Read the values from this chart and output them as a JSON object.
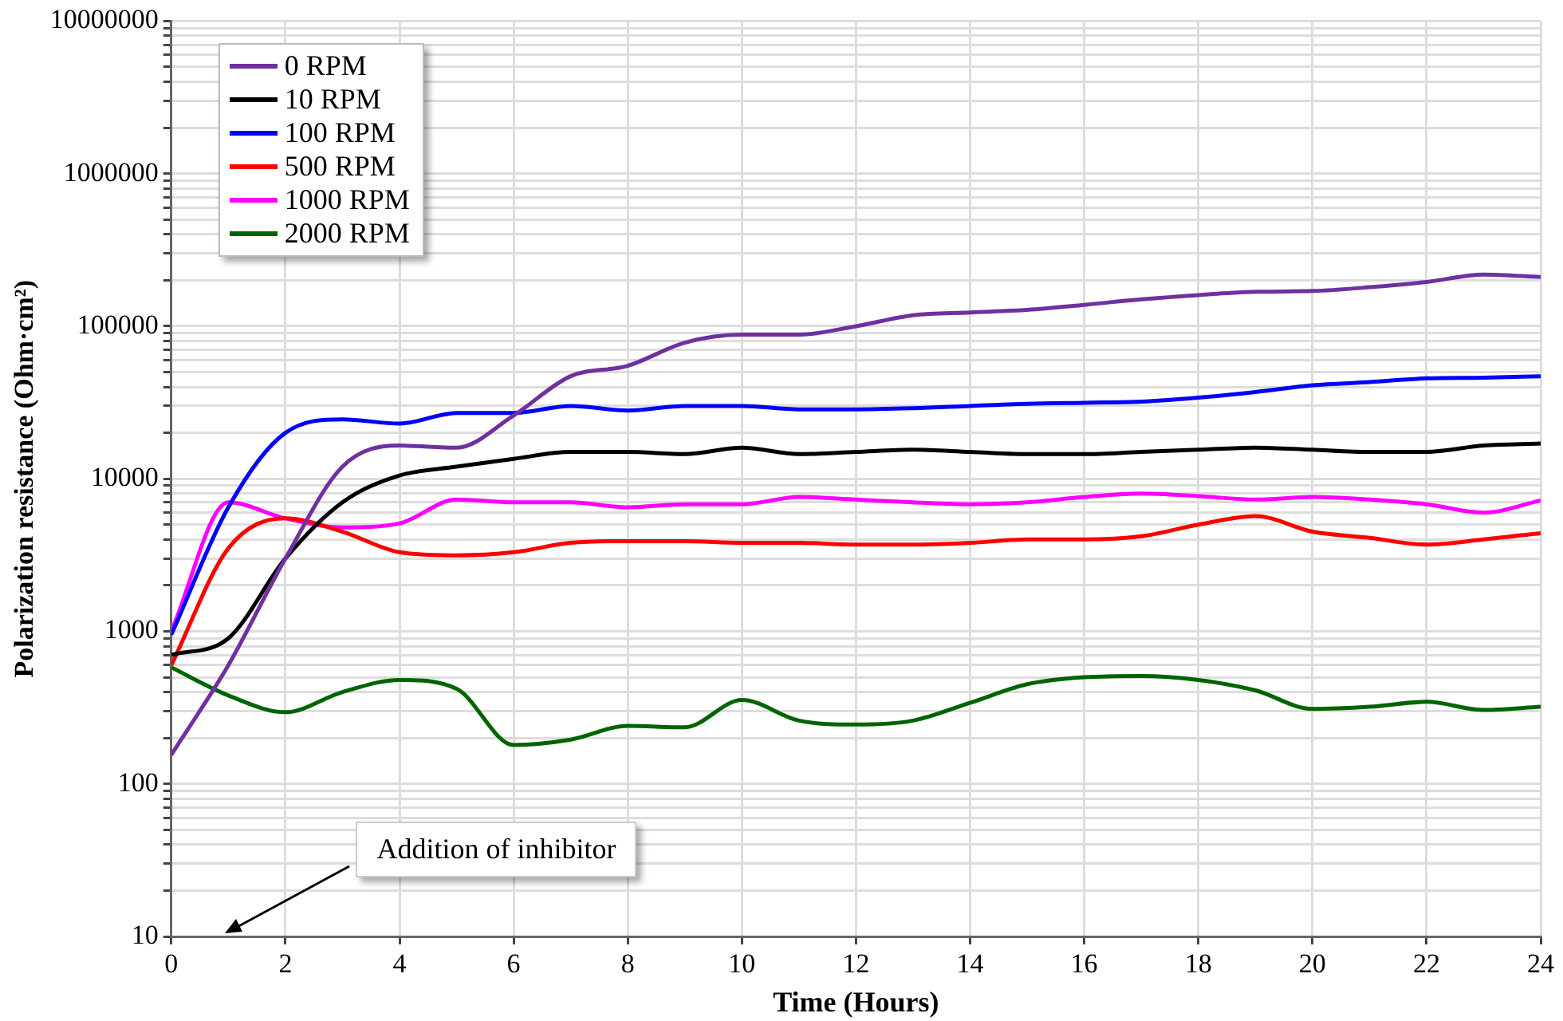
{
  "chart_data": {
    "type": "line",
    "xlabel": "Time (Hours)",
    "ylabel": "Polarization resistance (Ohm·cm²)",
    "x": [
      0,
      1,
      2,
      3,
      4,
      5,
      6,
      7,
      8,
      9,
      10,
      11,
      12,
      13,
      14,
      15,
      16,
      17,
      18,
      19,
      20,
      21,
      22,
      23,
      24
    ],
    "series": [
      {
        "name": "0 RPM",
        "color": "#7030a0",
        "values": [
          155,
          600,
          3000,
          12000,
          16500,
          16000,
          26000,
          47000,
          55000,
          78000,
          88000,
          88000,
          100000,
          118000,
          123000,
          128000,
          138000,
          150000,
          160000,
          168000,
          170000,
          180000,
          195000,
          218000,
          210000
        ]
      },
      {
        "name": "10 RPM",
        "color": "#000000",
        "values": [
          700,
          900,
          3000,
          7000,
          10500,
          12000,
          13500,
          15000,
          15000,
          14500,
          16000,
          14500,
          15000,
          15500,
          15000,
          14500,
          14500,
          15000,
          15500,
          16000,
          15500,
          15000,
          15000,
          16500,
          17000
        ]
      },
      {
        "name": "100 RPM",
        "color": "#0000ff",
        "values": [
          950,
          6500,
          20000,
          24500,
          23000,
          27000,
          27000,
          30000,
          28000,
          30000,
          30000,
          28500,
          28500,
          29000,
          30000,
          31000,
          31500,
          32000,
          34000,
          37000,
          41000,
          43000,
          45500,
          46000,
          47000
        ]
      },
      {
        "name": "500 RPM",
        "color": "#ff0000",
        "values": [
          600,
          3500,
          5500,
          4500,
          3300,
          3150,
          3300,
          3800,
          3900,
          3900,
          3800,
          3800,
          3700,
          3700,
          3800,
          4000,
          4000,
          4200,
          5000,
          5700,
          4500,
          4100,
          3700,
          4000,
          4400
        ]
      },
      {
        "name": "1000 RPM",
        "color": "#ff00ff",
        "values": [
          1000,
          7000,
          5500,
          4800,
          5100,
          7300,
          7000,
          7000,
          6500,
          6800,
          6800,
          7600,
          7300,
          7000,
          6800,
          7000,
          7600,
          8000,
          7700,
          7300,
          7600,
          7300,
          6800,
          6000,
          7200
        ]
      },
      {
        "name": "2000 RPM",
        "color": "#006400",
        "values": [
          580,
          380,
          295,
          400,
          480,
          420,
          180,
          195,
          240,
          235,
          355,
          260,
          245,
          260,
          340,
          450,
          500,
          510,
          480,
          410,
          310,
          320,
          345,
          305,
          320
        ]
      }
    ],
    "xlim": [
      0,
      24
    ],
    "xticks": [
      0,
      2,
      4,
      6,
      8,
      10,
      12,
      14,
      16,
      18,
      20,
      22,
      24
    ],
    "ylim": [
      10,
      10000000
    ],
    "yticks": [
      10,
      100,
      1000,
      10000,
      100000,
      1000000,
      10000000
    ],
    "log": "y",
    "grid": true,
    "legend": "top left",
    "marker": "none",
    "line_style": "solid",
    "annotations": [
      "Addition of inhibitor"
    ]
  }
}
